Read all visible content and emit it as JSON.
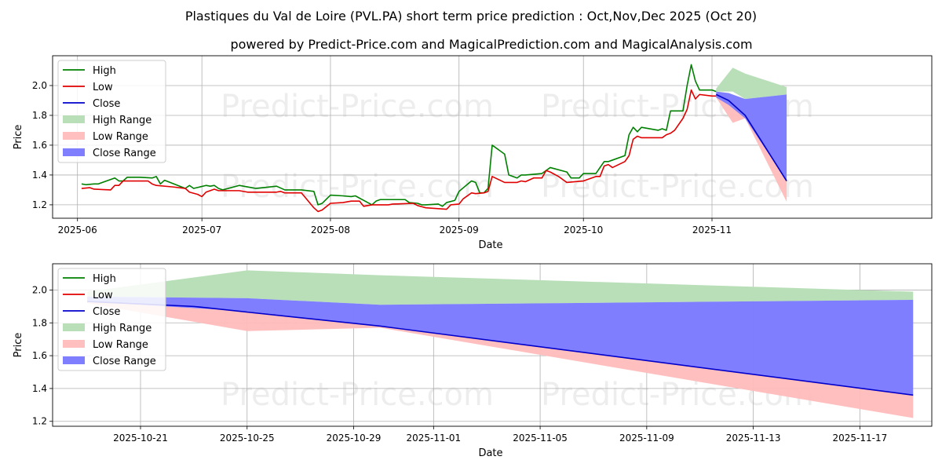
{
  "title": "Plastiques du Val de Loire (PVL.PA) short term price prediction : Oct,Nov,Dec 2025 (Oct 20)",
  "subtitle": "powered by Predict-Price.com and MagicalPrediction.com and MagicalAnalysis.com",
  "watermark": "Predict-Price.com",
  "colors": {
    "high": "#008000",
    "low": "#e00000",
    "close": "#0000cc",
    "high_range": "#b9dfb9",
    "low_range": "#ffbcbc",
    "close_range": "#7b7bff"
  },
  "legend": [
    "High",
    "Low",
    "Close",
    "High Range",
    "Low Range",
    "Close Range"
  ],
  "chart_data": [
    {
      "type": "line",
      "xlabel": "Date",
      "ylabel": "Price",
      "xlim": [
        "2025-05-26",
        "2025-12-24"
      ],
      "ylim": [
        1.11,
        2.2
      ],
      "x_ticks": [
        "2025-06",
        "2025-07",
        "2025-08",
        "2025-09",
        "2025-10",
        "2025-11"
      ],
      "x_tick_dates": [
        "2025-06-01",
        "2025-07-01",
        "2025-08-01",
        "2025-09-01",
        "2025-10-01",
        "2025-11-01"
      ],
      "y_ticks": [
        "1.2",
        "1.4",
        "1.6",
        "1.8",
        "2.0"
      ],
      "grid": true,
      "legend_position": "upper left",
      "series": [
        {
          "name": "High",
          "points": [
            [
              "2025-06-02",
              1.34
            ],
            [
              "2025-06-03",
              1.335
            ],
            [
              "2025-06-05",
              1.34
            ],
            [
              "2025-06-06",
              1.34
            ],
            [
              "2025-06-10",
              1.38
            ],
            [
              "2025-06-11",
              1.36
            ],
            [
              "2025-06-12",
              1.36
            ],
            [
              "2025-06-13",
              1.385
            ],
            [
              "2025-06-16",
              1.385
            ],
            [
              "2025-06-19",
              1.38
            ],
            [
              "2025-06-20",
              1.39
            ],
            [
              "2025-06-21",
              1.34
            ],
            [
              "2025-06-22",
              1.365
            ],
            [
              "2025-06-27",
              1.31
            ],
            [
              "2025-06-28",
              1.33
            ],
            [
              "2025-06-29",
              1.31
            ],
            [
              "2025-07-02",
              1.33
            ],
            [
              "2025-07-03",
              1.325
            ],
            [
              "2025-07-04",
              1.33
            ],
            [
              "2025-07-05",
              1.31
            ],
            [
              "2025-07-06",
              1.3
            ],
            [
              "2025-07-10",
              1.33
            ],
            [
              "2025-07-13",
              1.315
            ],
            [
              "2025-07-14",
              1.31
            ],
            [
              "2025-07-19",
              1.325
            ],
            [
              "2025-07-21",
              1.3
            ],
            [
              "2025-07-25",
              1.3
            ],
            [
              "2025-07-28",
              1.29
            ],
            [
              "2025-07-29",
              1.2
            ],
            [
              "2025-07-30",
              1.21
            ],
            [
              "2025-08-01",
              1.265
            ],
            [
              "2025-08-04",
              1.26
            ],
            [
              "2025-08-06",
              1.255
            ],
            [
              "2025-08-07",
              1.26
            ],
            [
              "2025-08-11",
              1.2
            ],
            [
              "2025-08-12",
              1.225
            ],
            [
              "2025-08-13",
              1.235
            ],
            [
              "2025-08-19",
              1.235
            ],
            [
              "2025-08-20",
              1.215
            ],
            [
              "2025-08-22",
              1.21
            ],
            [
              "2025-08-23",
              1.2
            ],
            [
              "2025-08-24",
              1.2
            ],
            [
              "2025-08-27",
              1.205
            ],
            [
              "2025-08-28",
              1.19
            ],
            [
              "2025-08-29",
              1.215
            ],
            [
              "2025-08-31",
              1.23
            ],
            [
              "2025-09-01",
              1.29
            ],
            [
              "2025-09-04",
              1.36
            ],
            [
              "2025-09-05",
              1.35
            ],
            [
              "2025-09-06",
              1.28
            ],
            [
              "2025-09-07",
              1.28
            ],
            [
              "2025-09-08",
              1.31
            ],
            [
              "2025-09-09",
              1.6
            ],
            [
              "2025-09-12",
              1.54
            ],
            [
              "2025-09-13",
              1.4
            ],
            [
              "2025-09-15",
              1.38
            ],
            [
              "2025-09-16",
              1.4
            ],
            [
              "2025-09-17",
              1.4
            ],
            [
              "2025-09-21",
              1.41
            ],
            [
              "2025-09-23",
              1.45
            ],
            [
              "2025-09-27",
              1.42
            ],
            [
              "2025-09-28",
              1.38
            ],
            [
              "2025-09-30",
              1.38
            ],
            [
              "2025-10-01",
              1.41
            ],
            [
              "2025-10-04",
              1.41
            ],
            [
              "2025-10-06",
              1.49
            ],
            [
              "2025-10-07",
              1.49
            ],
            [
              "2025-10-08",
              1.5
            ],
            [
              "2025-10-11",
              1.53
            ],
            [
              "2025-10-12",
              1.67
            ],
            [
              "2025-10-13",
              1.72
            ],
            [
              "2025-10-14",
              1.69
            ],
            [
              "2025-10-15",
              1.72
            ],
            [
              "2025-10-19",
              1.7
            ],
            [
              "2025-10-20",
              1.71
            ],
            [
              "2025-10-21",
              1.7
            ],
            [
              "2025-10-22",
              1.83
            ],
            [
              "2025-10-25",
              1.83
            ],
            [
              "2025-10-26",
              2.0
            ],
            [
              "2025-10-27",
              2.14
            ],
            [
              "2025-10-28",
              2.03
            ],
            [
              "2025-10-29",
              1.97
            ],
            [
              "2025-11-01",
              1.97
            ],
            [
              "2025-11-02",
              1.96
            ]
          ]
        },
        {
          "name": "Low",
          "points": [
            [
              "2025-06-02",
              1.31
            ],
            [
              "2025-06-04",
              1.315
            ],
            [
              "2025-06-05",
              1.305
            ],
            [
              "2025-06-09",
              1.3
            ],
            [
              "2025-06-10",
              1.33
            ],
            [
              "2025-06-11",
              1.33
            ],
            [
              "2025-06-12",
              1.36
            ],
            [
              "2025-06-18",
              1.36
            ],
            [
              "2025-06-19",
              1.34
            ],
            [
              "2025-06-20",
              1.33
            ],
            [
              "2025-06-24",
              1.32
            ],
            [
              "2025-06-27",
              1.31
            ],
            [
              "2025-06-28",
              1.285
            ],
            [
              "2025-06-30",
              1.27
            ],
            [
              "2025-07-01",
              1.255
            ],
            [
              "2025-07-02",
              1.285
            ],
            [
              "2025-07-03",
              1.295
            ],
            [
              "2025-07-04",
              1.305
            ],
            [
              "2025-07-05",
              1.295
            ],
            [
              "2025-07-10",
              1.295
            ],
            [
              "2025-07-12",
              1.285
            ],
            [
              "2025-07-13",
              1.285
            ],
            [
              "2025-07-19",
              1.285
            ],
            [
              "2025-07-20",
              1.29
            ],
            [
              "2025-07-21",
              1.28
            ],
            [
              "2025-07-25",
              1.28
            ],
            [
              "2025-07-28",
              1.18
            ],
            [
              "2025-07-29",
              1.155
            ],
            [
              "2025-07-30",
              1.165
            ],
            [
              "2025-08-01",
              1.21
            ],
            [
              "2025-08-04",
              1.215
            ],
            [
              "2025-08-06",
              1.225
            ],
            [
              "2025-08-08",
              1.225
            ],
            [
              "2025-08-09",
              1.19
            ],
            [
              "2025-08-11",
              1.2
            ],
            [
              "2025-08-13",
              1.2
            ],
            [
              "2025-08-15",
              1.2
            ],
            [
              "2025-08-16",
              1.205
            ],
            [
              "2025-08-21",
              1.21
            ],
            [
              "2025-08-22",
              1.195
            ],
            [
              "2025-08-24",
              1.18
            ],
            [
              "2025-08-29",
              1.17
            ],
            [
              "2025-08-30",
              1.2
            ],
            [
              "2025-09-01",
              1.205
            ],
            [
              "2025-09-02",
              1.24
            ],
            [
              "2025-09-04",
              1.28
            ],
            [
              "2025-09-05",
              1.275
            ],
            [
              "2025-09-07",
              1.28
            ],
            [
              "2025-09-08",
              1.29
            ],
            [
              "2025-09-09",
              1.39
            ],
            [
              "2025-09-12",
              1.35
            ],
            [
              "2025-09-15",
              1.35
            ],
            [
              "2025-09-16",
              1.36
            ],
            [
              "2025-09-17",
              1.355
            ],
            [
              "2025-09-19",
              1.38
            ],
            [
              "2025-09-21",
              1.38
            ],
            [
              "2025-09-22",
              1.43
            ],
            [
              "2025-09-23",
              1.42
            ],
            [
              "2025-09-25",
              1.39
            ],
            [
              "2025-09-26",
              1.37
            ],
            [
              "2025-09-27",
              1.35
            ],
            [
              "2025-09-29",
              1.355
            ],
            [
              "2025-10-01",
              1.36
            ],
            [
              "2025-10-04",
              1.39
            ],
            [
              "2025-10-05",
              1.39
            ],
            [
              "2025-10-06",
              1.46
            ],
            [
              "2025-10-07",
              1.47
            ],
            [
              "2025-10-08",
              1.45
            ],
            [
              "2025-10-11",
              1.49
            ],
            [
              "2025-10-12",
              1.53
            ],
            [
              "2025-10-13",
              1.64
            ],
            [
              "2025-10-14",
              1.66
            ],
            [
              "2025-10-15",
              1.65
            ],
            [
              "2025-10-20",
              1.65
            ],
            [
              "2025-10-21",
              1.67
            ],
            [
              "2025-10-22",
              1.68
            ],
            [
              "2025-10-23",
              1.7
            ],
            [
              "2025-10-25",
              1.78
            ],
            [
              "2025-10-26",
              1.84
            ],
            [
              "2025-10-27",
              1.97
            ],
            [
              "2025-10-28",
              1.91
            ],
            [
              "2025-10-29",
              1.94
            ],
            [
              "2025-11-01",
              1.93
            ],
            [
              "2025-11-02",
              1.93
            ]
          ]
        },
        {
          "name": "Close",
          "points": [
            [
              "2025-11-02",
              1.94
            ],
            [
              "2025-11-05",
              1.9
            ],
            [
              "2025-11-09",
              1.8
            ],
            [
              "2025-11-19",
              1.36
            ]
          ]
        }
      ],
      "ranges": [
        {
          "name": "High Range",
          "points": [
            [
              "2025-11-02",
              1.98,
              1.96
            ],
            [
              "2025-11-06",
              2.12,
              1.96
            ],
            [
              "2025-11-09",
              2.08,
              1.91
            ],
            [
              "2025-11-19",
              1.99,
              1.94
            ]
          ]
        },
        {
          "name": "Low Range",
          "points": [
            [
              "2025-11-02",
              1.93,
              1.92
            ],
            [
              "2025-11-06",
              1.88,
              1.75
            ],
            [
              "2025-11-09",
              1.81,
              1.78
            ],
            [
              "2025-11-19",
              1.36,
              1.22
            ]
          ]
        },
        {
          "name": "Close Range",
          "points": [
            [
              "2025-11-02",
              1.96,
              1.92
            ],
            [
              "2025-11-05",
              1.95,
              1.87
            ],
            [
              "2025-11-09",
              1.91,
              1.78
            ],
            [
              "2025-11-19",
              1.94,
              1.36
            ]
          ]
        }
      ]
    },
    {
      "type": "line",
      "xlabel": "Date",
      "ylabel": "Price",
      "xlim": [
        "2025-10-17.7",
        "2025-11-19.7"
      ],
      "ylim": [
        1.17,
        2.16
      ],
      "x_ticks": [
        "2025-10-21",
        "2025-10-25",
        "2025-10-29",
        "2025-11-01",
        "2025-11-05",
        "2025-11-09",
        "2025-11-13",
        "2025-11-17"
      ],
      "y_ticks": [
        "1.2",
        "1.4",
        "1.6",
        "1.8",
        "2.0"
      ],
      "grid": true,
      "legend_position": "upper left",
      "series": [
        {
          "name": "Close",
          "points": [
            [
              "2025-10-19",
              1.93
            ],
            [
              "2025-10-23",
              1.9
            ],
            [
              "2025-10-30",
              1.78
            ],
            [
              "2025-11-19",
              1.36
            ]
          ]
        }
      ],
      "ranges": [
        {
          "name": "High Range",
          "points": [
            [
              "2025-10-19",
              1.99,
              1.96
            ],
            [
              "2025-10-25",
              2.12,
              1.95
            ],
            [
              "2025-10-30",
              2.09,
              1.91
            ],
            [
              "2025-11-19",
              1.99,
              1.94
            ]
          ]
        },
        {
          "name": "Low Range",
          "points": [
            [
              "2025-10-19",
              1.93,
              1.92
            ],
            [
              "2025-10-25",
              1.87,
              1.75
            ],
            [
              "2025-10-30",
              1.79,
              1.77
            ],
            [
              "2025-11-19",
              1.36,
              1.22
            ]
          ]
        },
        {
          "name": "Close Range",
          "points": [
            [
              "2025-10-19",
              1.96,
              1.93
            ],
            [
              "2025-10-25",
              1.95,
              1.87
            ],
            [
              "2025-10-30",
              1.91,
              1.78
            ],
            [
              "2025-11-19",
              1.94,
              1.36
            ]
          ]
        }
      ]
    }
  ]
}
